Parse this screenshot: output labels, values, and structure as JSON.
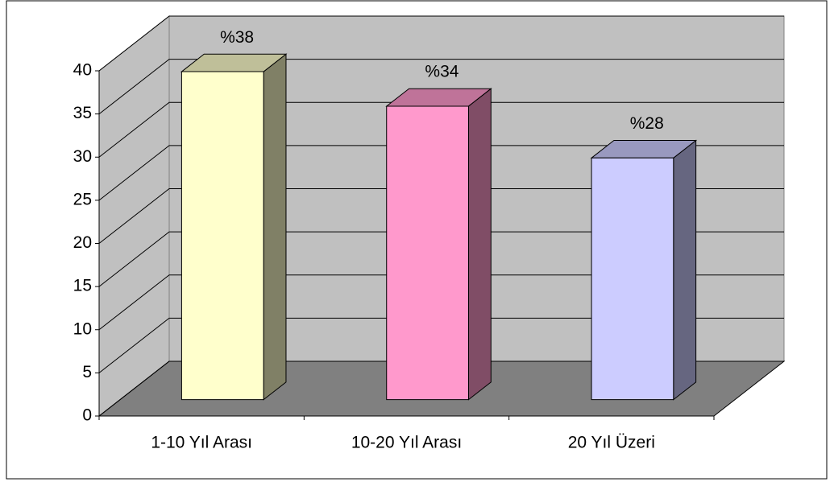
{
  "chart_data": {
    "type": "bar3d",
    "categories": [
      "1-10 Yıl Arası",
      "10-20 Yıl Arası",
      "20 Yıl Üzeri"
    ],
    "values": [
      38,
      34,
      28
    ],
    "value_labels": [
      "%38",
      "%34",
      "%28"
    ],
    "colors": [
      "#ffffcc",
      "#ff99cc",
      "#ccccff"
    ],
    "ylim": [
      0,
      40
    ],
    "yticks": [
      0,
      5,
      10,
      15,
      20,
      25,
      30,
      35,
      40
    ],
    "grid": true
  }
}
